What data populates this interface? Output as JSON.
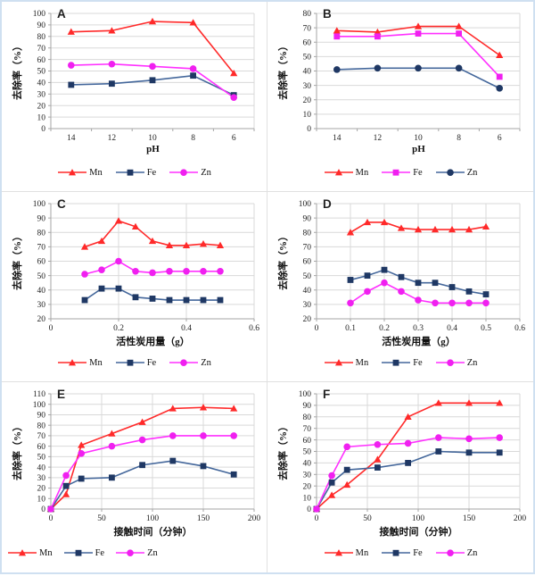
{
  "page": {
    "background": "#ffffff",
    "outer_border_color": "#cfe0f1",
    "grid_color": "#d9d9d9",
    "axis_color": "#a6a6a6",
    "tick_text_color": "#1f1f1f"
  },
  "chart_data": [
    {
      "letter": "A",
      "type": "line",
      "ylabel": "去除率（%）",
      "xlabel": "pH",
      "ylim": [
        0,
        100
      ],
      "ystep": 10,
      "x_mode": "category",
      "categories": [
        "14",
        "12",
        "10",
        "8",
        "6"
      ],
      "legend_align": "center",
      "grid": "horizontal",
      "legend_position": "bottom-center",
      "series": [
        {
          "name": "Mn",
          "marker": "triangle",
          "marker_color": "#ff2a2a",
          "line_color": "#ff2a2a",
          "values": [
            84,
            85,
            93,
            92,
            48
          ]
        },
        {
          "name": "Fe",
          "marker": "square",
          "marker_color": "#1f3864",
          "line_color": "#44679b",
          "values": [
            38,
            39,
            42,
            46,
            29
          ]
        },
        {
          "name": "Zn",
          "marker": "circle",
          "marker_color": "#f020f0",
          "line_color": "#ff30ff",
          "values": [
            55,
            56,
            54,
            52,
            27
          ]
        }
      ]
    },
    {
      "letter": "B",
      "type": "line",
      "ylabel": "去除率（%）",
      "xlabel": "pH",
      "ylim": [
        0,
        80
      ],
      "ystep": 10,
      "x_mode": "category",
      "categories": [
        "14",
        "12",
        "10",
        "8",
        "6"
      ],
      "legend_align": "center",
      "grid": "horizontal",
      "legend_position": "bottom-center",
      "series": [
        {
          "name": "Mn",
          "marker": "triangle",
          "marker_color": "#ff2a2a",
          "line_color": "#ff2a2a",
          "values": [
            68,
            67,
            71,
            71,
            51
          ]
        },
        {
          "name": "Fe",
          "marker": "square",
          "marker_color": "#f020f0",
          "line_color": "#ff30ff",
          "values": [
            64,
            64,
            66,
            66,
            36
          ]
        },
        {
          "name": "Zn",
          "marker": "circle",
          "marker_color": "#1f3864",
          "line_color": "#44679b",
          "values": [
            41,
            42,
            42,
            42,
            28
          ]
        }
      ]
    },
    {
      "letter": "C",
      "type": "line",
      "ylabel": "去除率（%）",
      "xlabel": "活性炭用量（g）",
      "ylim": [
        20,
        100
      ],
      "ystep": 10,
      "x_mode": "numeric",
      "xlim": [
        0,
        0.6
      ],
      "xticks": [
        0,
        0.2,
        0.4,
        0.6
      ],
      "xtick_labels": [
        "0",
        "0.2",
        "0.4",
        "0.6"
      ],
      "x": [
        0.1,
        0.15,
        0.2,
        0.25,
        0.3,
        0.35,
        0.4,
        0.45,
        0.5
      ],
      "legend_align": "center",
      "grid": "both",
      "legend_position": "bottom-center",
      "series": [
        {
          "name": "Mn",
          "marker": "triangle",
          "marker_color": "#ff2a2a",
          "line_color": "#ff2a2a",
          "values": [
            70,
            74,
            88,
            84,
            74,
            71,
            71,
            72,
            71
          ]
        },
        {
          "name": "Fe",
          "marker": "square",
          "marker_color": "#1f3864",
          "line_color": "#44679b",
          "values": [
            33,
            41,
            41,
            35,
            34,
            33,
            33,
            33,
            33
          ]
        },
        {
          "name": "Zn",
          "marker": "circle",
          "marker_color": "#f020f0",
          "line_color": "#ff30ff",
          "values": [
            51,
            54,
            60,
            53,
            52,
            53,
            53,
            53,
            53
          ]
        }
      ]
    },
    {
      "letter": "D",
      "type": "line",
      "ylabel": "去除率（%）",
      "xlabel": "活性炭用量（g）",
      "ylim": [
        20,
        100
      ],
      "ystep": 10,
      "x_mode": "numeric",
      "xlim": [
        0,
        0.6
      ],
      "xticks": [
        0,
        0.1,
        0.2,
        0.3,
        0.4,
        0.5,
        0.6
      ],
      "xtick_labels": [
        "0",
        "0.1",
        "0.2",
        "0.3",
        "0.4",
        "0.5",
        "0.6"
      ],
      "x": [
        0.1,
        0.15,
        0.2,
        0.25,
        0.3,
        0.35,
        0.4,
        0.45,
        0.5
      ],
      "legend_align": "center",
      "grid": "both",
      "legend_position": "bottom-center",
      "series": [
        {
          "name": "Mn",
          "marker": "triangle",
          "marker_color": "#ff2a2a",
          "line_color": "#ff2a2a",
          "values": [
            80,
            87,
            87,
            83,
            82,
            82,
            82,
            82,
            84
          ]
        },
        {
          "name": "Fe",
          "marker": "square",
          "marker_color": "#1f3864",
          "line_color": "#44679b",
          "values": [
            47,
            50,
            54,
            49,
            45,
            45,
            42,
            39,
            37
          ]
        },
        {
          "name": "Zn",
          "marker": "circle",
          "marker_color": "#f020f0",
          "line_color": "#ff30ff",
          "values": [
            31,
            39,
            45,
            39,
            33,
            31,
            31,
            31,
            31
          ]
        }
      ]
    },
    {
      "letter": "E",
      "type": "line",
      "ylabel": "去除率（%）",
      "xlabel": "接触时间（分钟）",
      "ylim": [
        0,
        110
      ],
      "ystep": 10,
      "x_mode": "numeric",
      "xlim": [
        0,
        200
      ],
      "xticks": [
        0,
        50,
        100,
        150,
        200
      ],
      "xtick_labels": [
        "0",
        "50",
        "100",
        "150",
        "200"
      ],
      "x": [
        0,
        15,
        30,
        60,
        90,
        120,
        150,
        180
      ],
      "legend_align": "left",
      "grid": "both",
      "legend_position": "bottom-left",
      "series": [
        {
          "name": "Mn",
          "marker": "triangle",
          "marker_color": "#ff2a2a",
          "line_color": "#ff2a2a",
          "values": [
            0,
            14,
            61,
            72,
            83,
            96,
            97,
            96
          ]
        },
        {
          "name": "Fe",
          "marker": "square",
          "marker_color": "#1f3864",
          "line_color": "#44679b",
          "values": [
            0,
            22,
            29,
            30,
            42,
            46,
            41,
            33
          ]
        },
        {
          "name": "Zn",
          "marker": "circle",
          "marker_color": "#f020f0",
          "line_color": "#ff30ff",
          "values": [
            0,
            32,
            53,
            60,
            66,
            70,
            70,
            70
          ]
        }
      ]
    },
    {
      "letter": "F",
      "type": "line",
      "ylabel": "去除率（%）",
      "xlabel": "接触时间（分钟）",
      "ylim": [
        0,
        100
      ],
      "ystep": 10,
      "x_mode": "numeric",
      "xlim": [
        0,
        200
      ],
      "xticks": [
        0,
        50,
        100,
        150,
        200
      ],
      "xtick_labels": [
        "0",
        "50",
        "100",
        "150",
        "200"
      ],
      "x": [
        0,
        15,
        30,
        60,
        90,
        120,
        150,
        180
      ],
      "legend_align": "center",
      "grid": "both",
      "legend_position": "bottom-center",
      "series": [
        {
          "name": "Mn",
          "marker": "triangle",
          "marker_color": "#ff2a2a",
          "line_color": "#ff2a2a",
          "values": [
            0,
            12,
            21,
            43,
            80,
            92,
            92,
            92
          ]
        },
        {
          "name": "Fe",
          "marker": "square",
          "marker_color": "#1f3864",
          "line_color": "#44679b",
          "values": [
            0,
            23,
            34,
            36,
            40,
            50,
            49,
            49
          ]
        },
        {
          "name": "Zn",
          "marker": "circle",
          "marker_color": "#f020f0",
          "line_color": "#ff30ff",
          "values": [
            0,
            29,
            54,
            56,
            57,
            62,
            61,
            62
          ]
        }
      ]
    }
  ]
}
